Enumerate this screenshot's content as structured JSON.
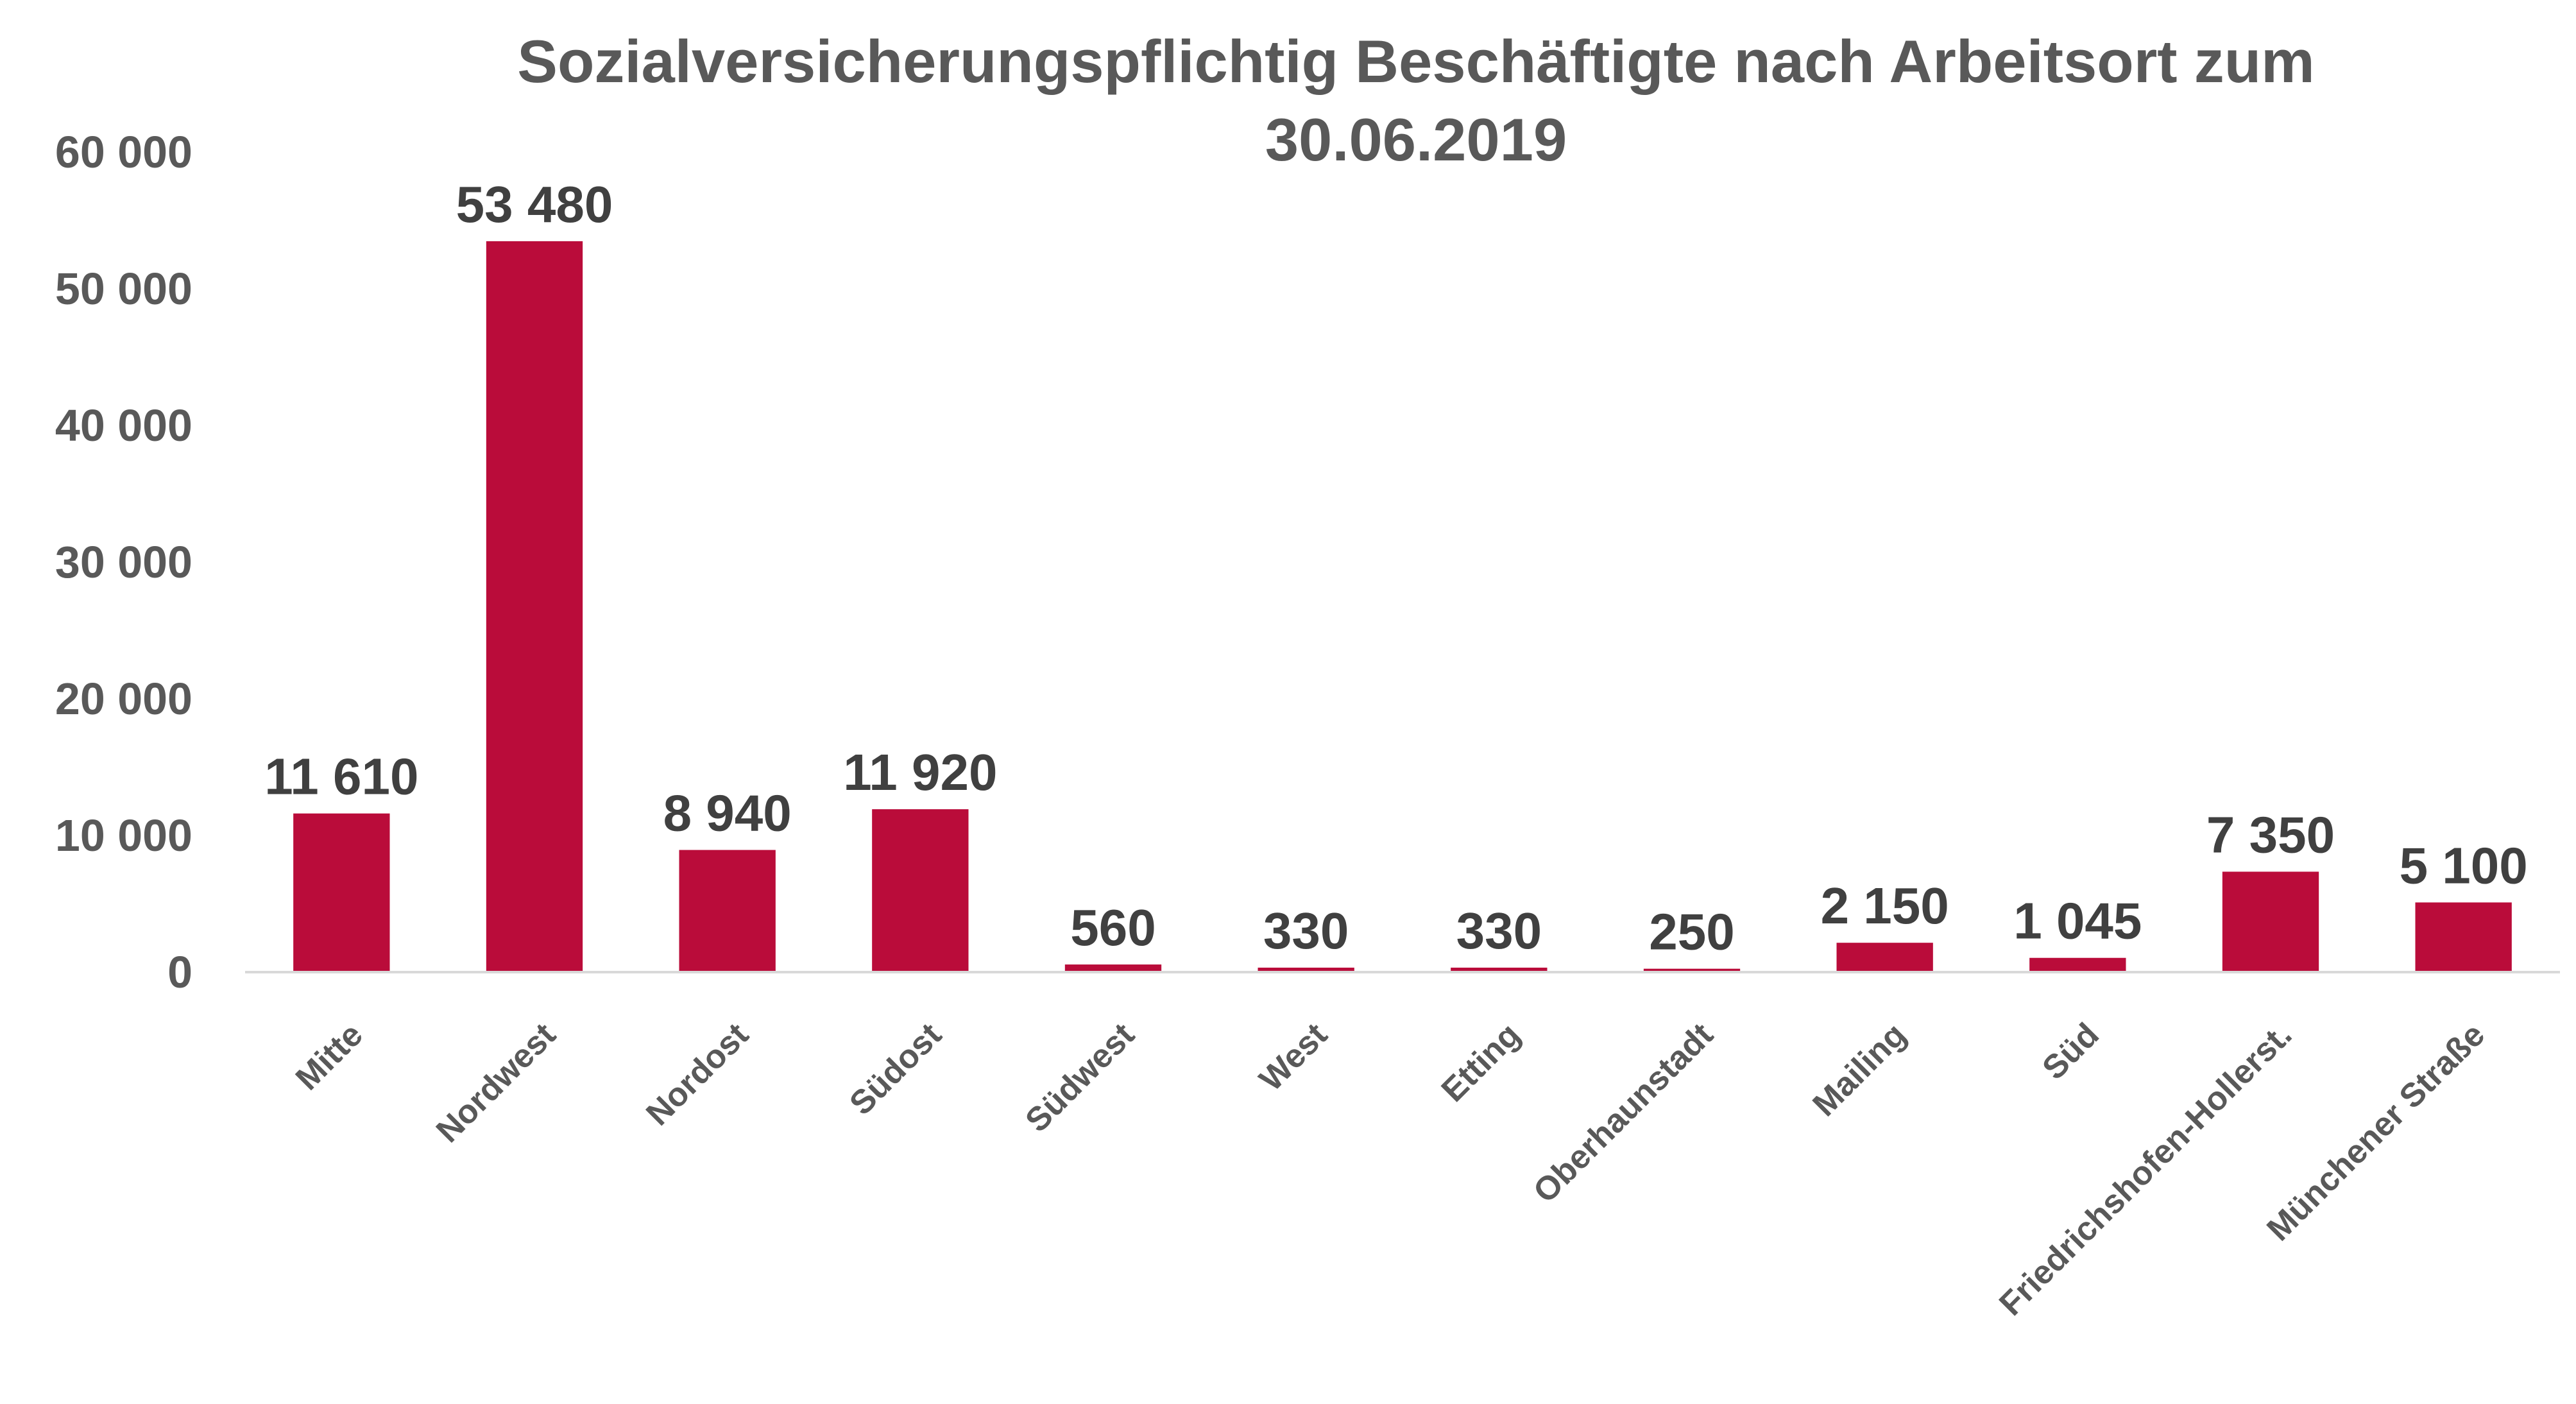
{
  "chart_data": {
    "type": "bar",
    "title": "Sozialversicherungspflichtig Beschäftigte nach Arbeitsort zum 30.06.2019",
    "title_lines": [
      "Sozialversicherungspflichtig Beschäftigte nach Arbeitsort zum",
      "30.06.2019"
    ],
    "xlabel": "",
    "ylabel": "",
    "ylim": [
      0,
      60000
    ],
    "yticks": [
      0,
      10000,
      20000,
      30000,
      40000,
      50000,
      60000
    ],
    "ytick_labels": [
      "0",
      "10 000",
      "20 000",
      "30 000",
      "40 000",
      "50 000",
      "60 000"
    ],
    "grid": false,
    "legend": "none",
    "bar_color": "#BA0C3A",
    "categories": [
      "Mitte",
      "Nordwest",
      "Nordost",
      "Südost",
      "Südwest",
      "West",
      "Etting",
      "Oberhaunstadt",
      "Mailing",
      "Süd",
      "Friedrichshofen-Hollerst.",
      "Münchener Straße"
    ],
    "values": [
      11610,
      53480,
      8940,
      11920,
      560,
      330,
      330,
      250,
      2150,
      1045,
      7350,
      5100
    ],
    "data_labels": [
      "11 610",
      "53 480",
      "8 940",
      "11 920",
      "560",
      "330",
      "330",
      "250",
      "2 150",
      "1 045",
      "7 350",
      "5 100"
    ]
  }
}
